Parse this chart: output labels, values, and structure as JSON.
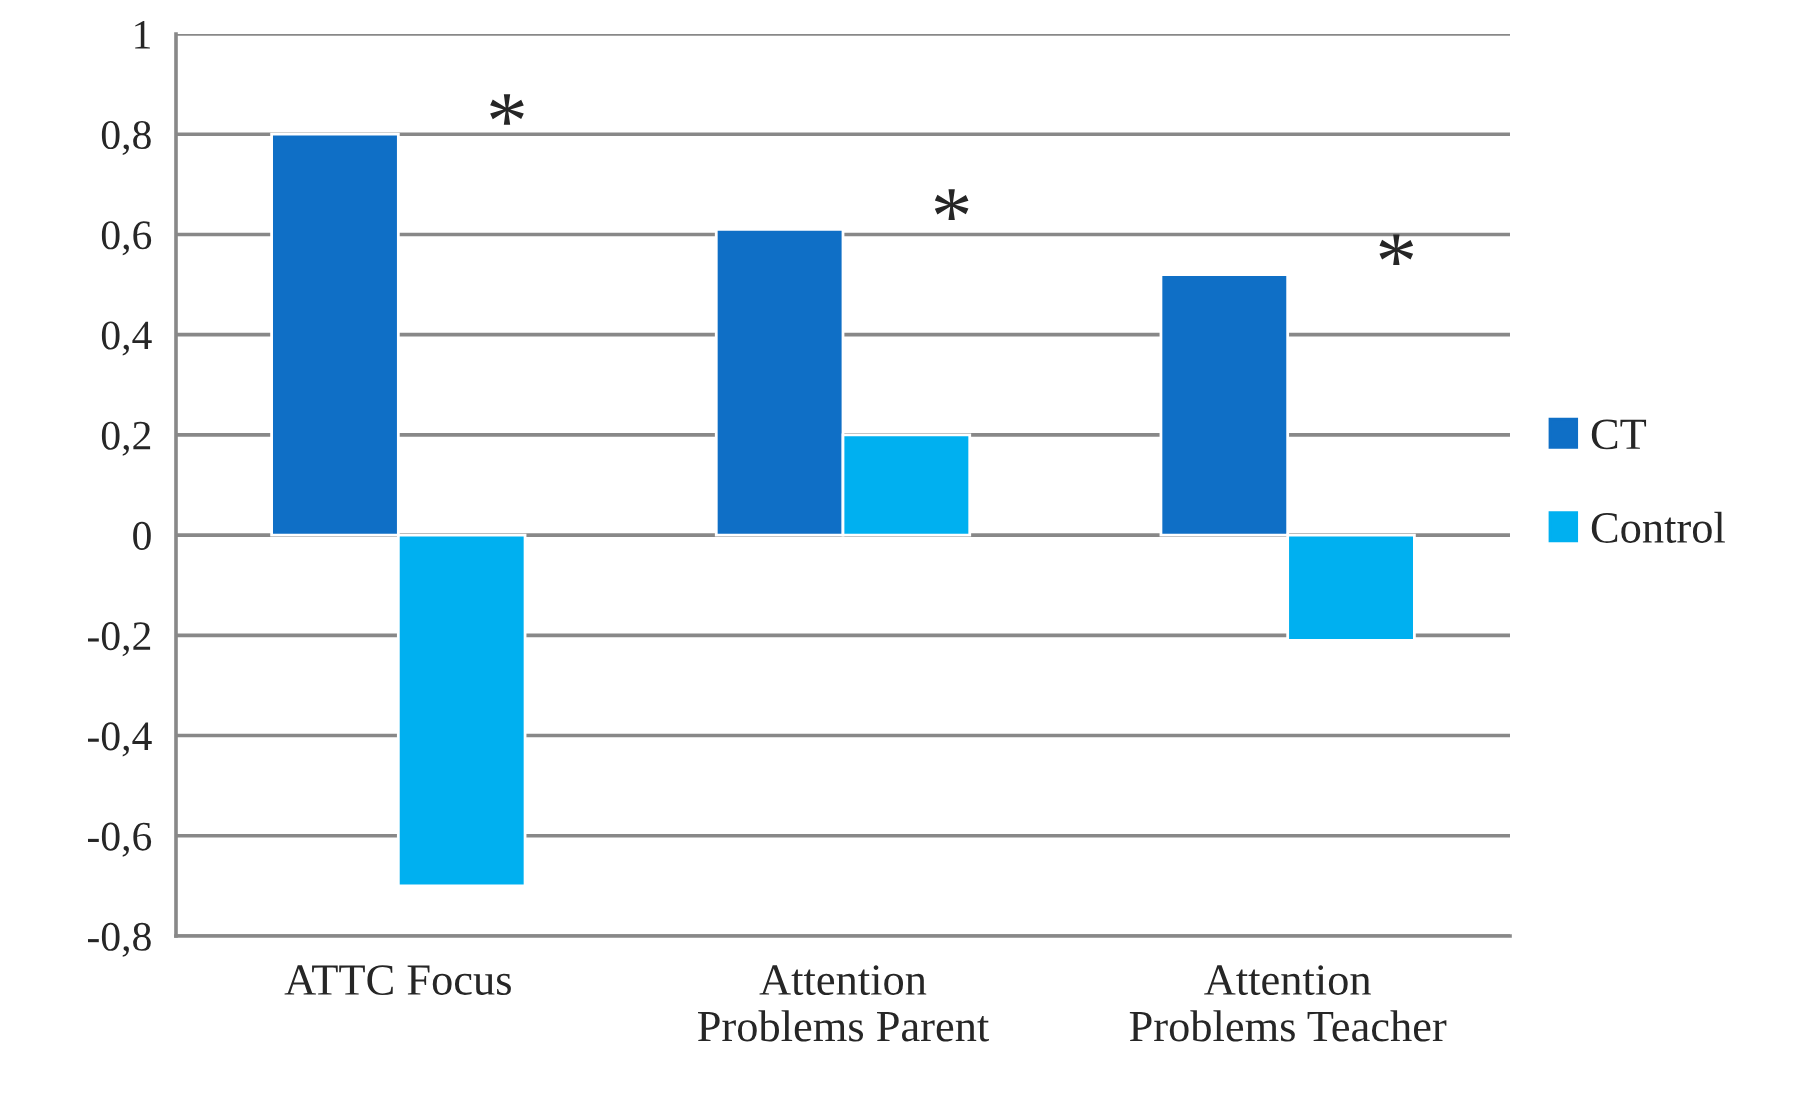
{
  "chart_data": {
    "type": "bar",
    "categories": [
      "ATTC Focus",
      "Attention\nProblems Parent",
      "Attention\nProblems Teacher"
    ],
    "series": [
      {
        "name": "CT",
        "color": "#0f6fc6",
        "values": [
          0.8,
          0.61,
          0.52
        ]
      },
      {
        "name": "Control",
        "color": "#00b0f0",
        "values": [
          -0.7,
          0.2,
          -0.21
        ]
      }
    ],
    "ylim": [
      -0.8,
      1
    ],
    "yticks": [
      {
        "value": -0.8,
        "label": "-0,8"
      },
      {
        "value": -0.6,
        "label": "-0,6"
      },
      {
        "value": -0.4,
        "label": "-0,4"
      },
      {
        "value": -0.2,
        "label": "-0,2"
      },
      0,
      {
        "value": 0.2,
        "label": "0,2"
      },
      {
        "value": 0.4,
        "label": "0,4"
      },
      {
        "value": 0.6,
        "label": "0,6"
      },
      {
        "value": 0.8,
        "label": "0,8"
      },
      1
    ],
    "grid": "y",
    "legend": "right",
    "annotations": [
      {
        "text": "*",
        "x": "ATTC Focus",
        "y": 0.8
      },
      {
        "text": "*",
        "x": "Attention\nProblems Parent",
        "y": 0.61
      },
      {
        "text": "*",
        "x": "Attention\nProblems Teacher",
        "y": 0.52
      }
    ]
  }
}
